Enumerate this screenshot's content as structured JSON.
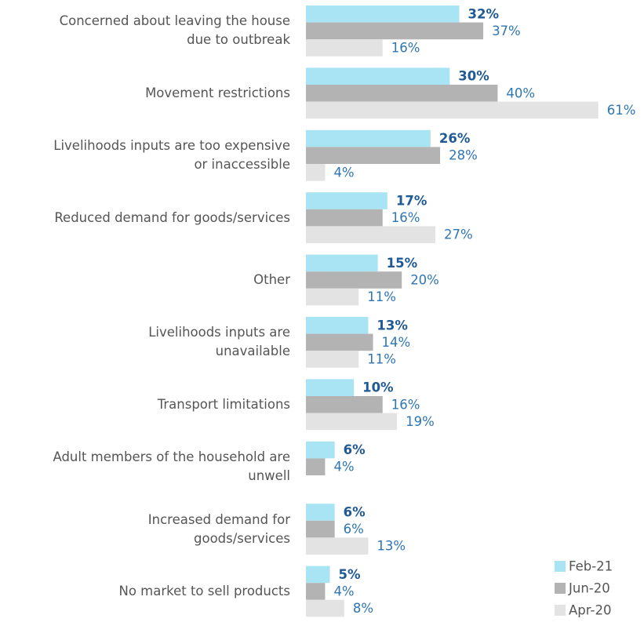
{
  "chart_data": {
    "type": "hbar",
    "categories": [
      "Concerned about leaving the house\ndue to outbreak",
      "Movement restrictions",
      "Livelihoods inputs are too expensive\nor inaccessible",
      "Reduced demand for goods/services",
      "Other",
      "Livelihoods inputs are\nunavailable",
      "Transport limitations",
      "Adult members of the household are\nunwell",
      "Increased demand for\ngoods/services",
      "No market to sell products"
    ],
    "series": [
      {
        "name": "Feb-21",
        "color": "#a8e4f3",
        "label_color": "#1f5a96",
        "bold": true,
        "values": [
          32,
          30,
          26,
          17,
          15,
          13,
          10,
          6,
          6,
          5
        ],
        "value_labels": [
          "32%",
          "30%",
          "26%",
          "17%",
          "15%",
          "13%",
          "10%",
          "6%",
          "6%",
          "5%"
        ]
      },
      {
        "name": "Jun-20",
        "color": "#b3b3b3",
        "label_color": "#2e75b6",
        "bold": false,
        "values": [
          37,
          40,
          28,
          16,
          20,
          14,
          16,
          4,
          6,
          4
        ],
        "value_labels": [
          "37%",
          "40%",
          "28%",
          "16%",
          "20%",
          "14%",
          "16%",
          "4%",
          "6%",
          "4%"
        ]
      },
      {
        "name": "Apr-20",
        "color": "#e3e3e3",
        "label_color": "#2e75b6",
        "bold": false,
        "values": [
          16,
          61,
          4,
          27,
          11,
          11,
          19,
          null,
          13,
          8
        ],
        "value_labels": [
          "16%",
          "61%",
          "4%",
          "27%",
          "11%",
          "11%",
          "19%",
          null,
          "13%",
          "8%"
        ]
      }
    ],
    "legend": "lower right"
  }
}
